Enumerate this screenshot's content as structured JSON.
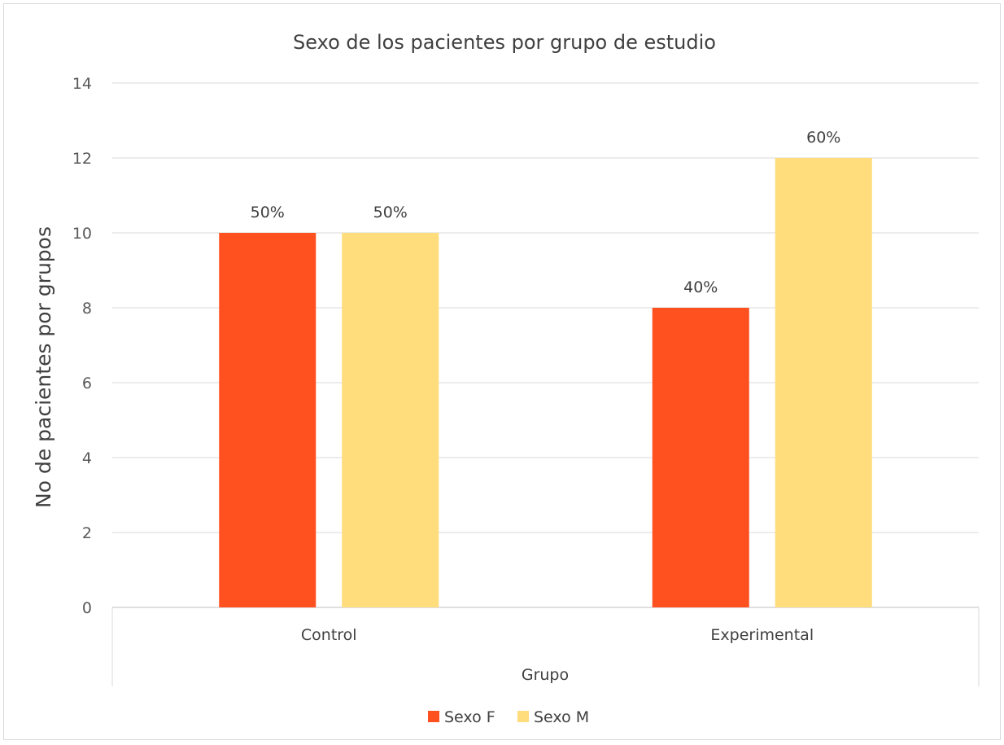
{
  "chart_data": {
    "type": "bar",
    "title": "Sexo  de los pacientes por grupo de estudio",
    "xlabel": "Grupo",
    "ylabel": "No de pacientes por grupos",
    "categories": [
      "Control",
      "Experimental"
    ],
    "series": [
      {
        "name": "Sexo F",
        "color": "#ff5020",
        "values": [
          10,
          8
        ],
        "labels": [
          "50%",
          "40%"
        ]
      },
      {
        "name": "Sexo M",
        "color": "#ffdc7c",
        "values": [
          10,
          12
        ],
        "labels": [
          "50%",
          "60%"
        ]
      }
    ],
    "ylim": [
      0,
      14
    ],
    "yticks": [
      0,
      2,
      4,
      6,
      8,
      10,
      12,
      14
    ],
    "grid": true,
    "legend_position": "bottom"
  }
}
